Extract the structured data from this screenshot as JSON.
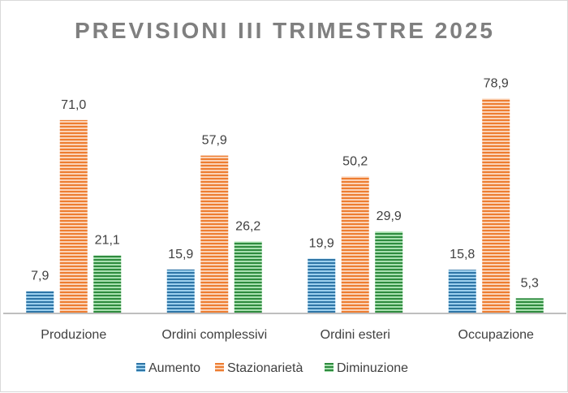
{
  "chart_data": {
    "type": "bar",
    "title": "PREVISIONI III TRIMESTRE 2025",
    "categories": [
      "Produzione",
      "Ordini complessivi",
      "Ordini esteri",
      "Occupazione"
    ],
    "series": [
      {
        "name": "Aumento",
        "values": [
          7.9,
          15.9,
          19.9,
          15.8
        ],
        "labels": [
          "7,9",
          "15,9",
          "19,9",
          "15,8"
        ],
        "color": "#2e75a6",
        "light": "#9dd0ee"
      },
      {
        "name": "Stazionarietà",
        "values": [
          71.0,
          57.9,
          50.2,
          78.9
        ],
        "labels": [
          "71,0",
          "57,9",
          "50,2",
          "78,9"
        ],
        "color": "#ed7d31",
        "light": "#fbd3b8"
      },
      {
        "name": "Diminuzione",
        "values": [
          21.1,
          26.2,
          29.9,
          5.3
        ],
        "labels": [
          "21,1",
          "26,2",
          "29,9",
          "5,3"
        ],
        "color": "#2e8b3e",
        "light": "#a8e0b0"
      }
    ],
    "xlabel": "",
    "ylabel": "",
    "ylim": [
      0,
      85
    ],
    "grid": false,
    "legend": "bottom"
  }
}
